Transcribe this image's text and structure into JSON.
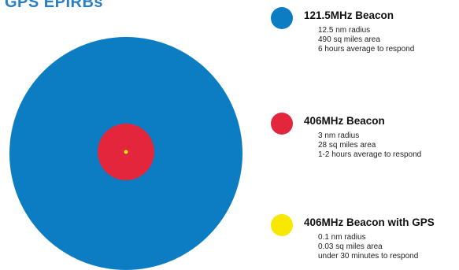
{
  "title": "GPS EPIRBs",
  "colors": {
    "beacon_121": "#0c7dc3",
    "beacon_406": "#e3263c",
    "beacon_406_gps": "#f8e700"
  },
  "beacons": [
    {
      "name": "121.5MHz Beacon",
      "color": "#0c7dc3",
      "details": [
        "12.5 nm radius",
        "490 sq miles area",
        "6 hours average to respond"
      ]
    },
    {
      "name": "406MHz Beacon",
      "color": "#e3263c",
      "details": [
        "3 nm radius",
        "28 sq miles area",
        "1-2 hours average to respond"
      ]
    },
    {
      "name": "406MHz Beacon with GPS",
      "color": "#f8e700",
      "details": [
        "0.1 nm radius",
        "0.03 sq miles area",
        "under 30 minutes to respond"
      ]
    }
  ]
}
